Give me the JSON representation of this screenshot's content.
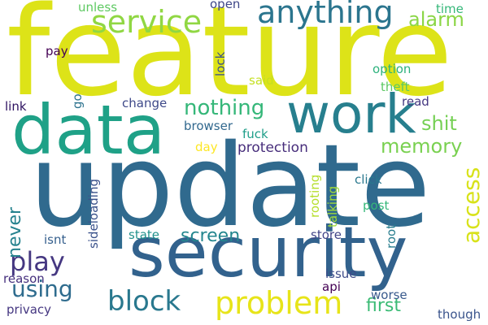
{
  "words": {
    "feature": "feature",
    "update": "update",
    "security": "security",
    "data": "data",
    "work": "work",
    "anything": "anything",
    "service": "service",
    "problem": "problem",
    "block": "block",
    "play": "play",
    "using": "using",
    "nothing": "nothing",
    "memory": "memory",
    "shit": "shit",
    "alarm": "alarm",
    "screen": "screen",
    "first": "first",
    "protection": "protection",
    "unless": "unless",
    "open": "open",
    "time": "time",
    "option": "option",
    "theft": "theft",
    "read": "read",
    "said": "said",
    "pay": "pay",
    "link": "link",
    "change": "change",
    "browser": "browser",
    "fuck": "fuck",
    "day": "day",
    "click": "click",
    "post": "post",
    "store": "store",
    "state": "state",
    "isnt": "isnt",
    "reason": "reason",
    "issue": "issue",
    "api": "api",
    "worse": "worse",
    "privacy": "privacy",
    "though": "though",
    "access": "access",
    "never": "never",
    "sideloading": "sideloading",
    "rooting": "rooting",
    "talking": "talking",
    "root": "root",
    "lock": "lock",
    "go": "go"
  },
  "colors": {
    "background": "#ffffff"
  }
}
